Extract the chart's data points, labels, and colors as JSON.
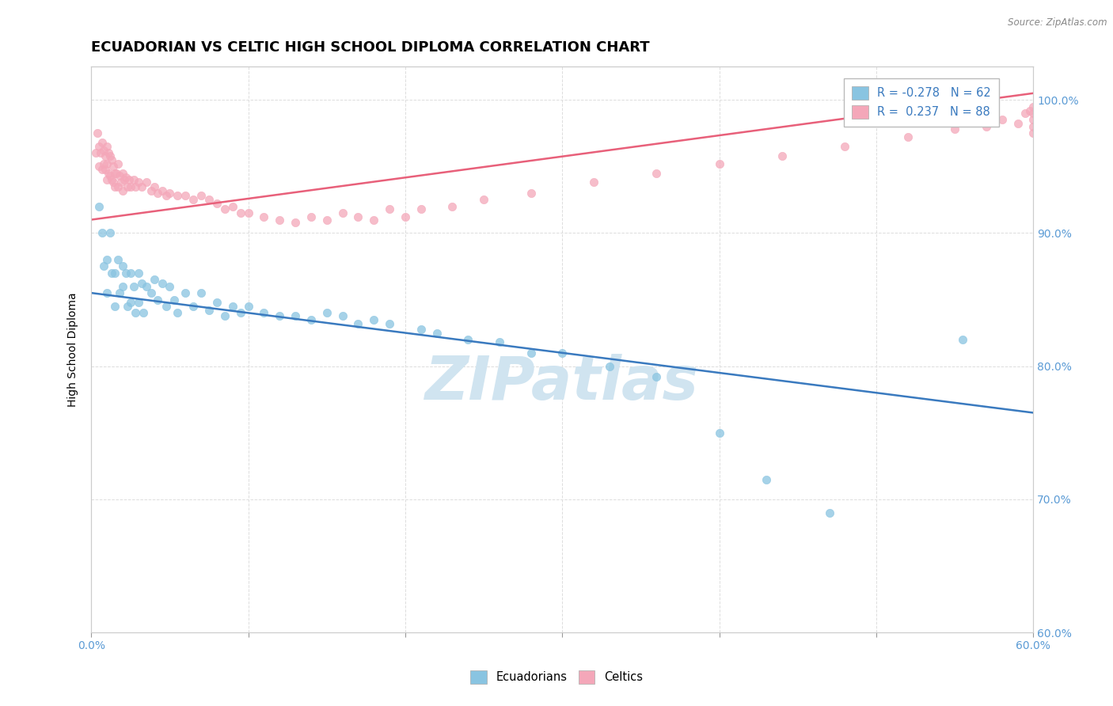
{
  "title": "ECUADORIAN VS CELTIC HIGH SCHOOL DIPLOMA CORRELATION CHART",
  "source": "Source: ZipAtlas.com",
  "ylabel": "High School Diploma",
  "xlim": [
    0.0,
    0.6
  ],
  "ylim": [
    0.615,
    1.025
  ],
  "yticks": [
    0.6,
    0.7,
    0.8,
    0.9,
    1.0
  ],
  "ytick_labels": [
    "60.0%",
    "70.0%",
    "80.0%",
    "90.0%",
    "100.0%"
  ],
  "xticks": [
    0.0,
    0.1,
    0.2,
    0.3,
    0.4,
    0.5,
    0.6
  ],
  "xtick_labels": [
    "0.0%",
    "",
    "",
    "",
    "",
    "",
    "60.0%"
  ],
  "legend_blue_label": "R = -0.278   N = 62",
  "legend_pink_label": "R =  0.237   N = 88",
  "legend_ecuadorians": "Ecuadorians",
  "legend_celtics": "Celtics",
  "blue_color": "#89c4e1",
  "pink_color": "#f4a7b9",
  "blue_line_color": "#3a7abf",
  "pink_line_color": "#e8607a",
  "watermark": "ZIPatlas",
  "watermark_color": "#d0e4f0",
  "grid_color": "#dddddd",
  "title_fontsize": 13,
  "label_fontsize": 10,
  "tick_fontsize": 10,
  "blue_scatter_x": [
    0.005,
    0.007,
    0.008,
    0.01,
    0.01,
    0.012,
    0.013,
    0.015,
    0.015,
    0.017,
    0.018,
    0.02,
    0.02,
    0.022,
    0.023,
    0.025,
    0.025,
    0.027,
    0.028,
    0.03,
    0.03,
    0.032,
    0.033,
    0.035,
    0.038,
    0.04,
    0.042,
    0.045,
    0.048,
    0.05,
    0.053,
    0.055,
    0.06,
    0.065,
    0.07,
    0.075,
    0.08,
    0.085,
    0.09,
    0.095,
    0.1,
    0.11,
    0.12,
    0.13,
    0.14,
    0.15,
    0.16,
    0.17,
    0.18,
    0.19,
    0.21,
    0.22,
    0.24,
    0.26,
    0.28,
    0.3,
    0.33,
    0.36,
    0.4,
    0.43,
    0.47,
    0.555
  ],
  "blue_scatter_y": [
    0.92,
    0.9,
    0.875,
    0.88,
    0.855,
    0.9,
    0.87,
    0.87,
    0.845,
    0.88,
    0.855,
    0.875,
    0.86,
    0.87,
    0.845,
    0.87,
    0.848,
    0.86,
    0.84,
    0.87,
    0.848,
    0.862,
    0.84,
    0.86,
    0.855,
    0.865,
    0.85,
    0.862,
    0.845,
    0.86,
    0.85,
    0.84,
    0.855,
    0.845,
    0.855,
    0.842,
    0.848,
    0.838,
    0.845,
    0.84,
    0.845,
    0.84,
    0.838,
    0.838,
    0.835,
    0.84,
    0.838,
    0.832,
    0.835,
    0.832,
    0.828,
    0.825,
    0.82,
    0.818,
    0.81,
    0.81,
    0.8,
    0.792,
    0.75,
    0.715,
    0.69,
    0.82
  ],
  "pink_scatter_x": [
    0.003,
    0.004,
    0.005,
    0.005,
    0.006,
    0.007,
    0.007,
    0.008,
    0.008,
    0.009,
    0.009,
    0.01,
    0.01,
    0.01,
    0.011,
    0.011,
    0.012,
    0.012,
    0.013,
    0.013,
    0.014,
    0.014,
    0.015,
    0.015,
    0.016,
    0.017,
    0.017,
    0.018,
    0.019,
    0.02,
    0.02,
    0.021,
    0.022,
    0.023,
    0.024,
    0.025,
    0.027,
    0.028,
    0.03,
    0.032,
    0.035,
    0.038,
    0.04,
    0.042,
    0.045,
    0.048,
    0.05,
    0.055,
    0.06,
    0.065,
    0.07,
    0.075,
    0.08,
    0.085,
    0.09,
    0.095,
    0.1,
    0.11,
    0.12,
    0.13,
    0.14,
    0.15,
    0.16,
    0.17,
    0.18,
    0.19,
    0.2,
    0.21,
    0.23,
    0.25,
    0.28,
    0.32,
    0.36,
    0.4,
    0.44,
    0.48,
    0.52,
    0.55,
    0.57,
    0.58,
    0.59,
    0.595,
    0.598,
    0.6,
    0.6,
    0.6,
    0.6,
    0.6
  ],
  "pink_scatter_y": [
    0.96,
    0.975,
    0.95,
    0.965,
    0.96,
    0.948,
    0.968,
    0.952,
    0.962,
    0.948,
    0.958,
    0.965,
    0.952,
    0.94,
    0.96,
    0.945,
    0.958,
    0.943,
    0.955,
    0.94,
    0.95,
    0.938,
    0.945,
    0.935,
    0.945,
    0.952,
    0.935,
    0.943,
    0.938,
    0.945,
    0.932,
    0.94,
    0.942,
    0.935,
    0.94,
    0.935,
    0.94,
    0.935,
    0.938,
    0.935,
    0.938,
    0.932,
    0.935,
    0.93,
    0.932,
    0.928,
    0.93,
    0.928,
    0.928,
    0.925,
    0.928,
    0.925,
    0.922,
    0.918,
    0.92,
    0.915,
    0.915,
    0.912,
    0.91,
    0.908,
    0.912,
    0.91,
    0.915,
    0.912,
    0.91,
    0.918,
    0.912,
    0.918,
    0.92,
    0.925,
    0.93,
    0.938,
    0.945,
    0.952,
    0.958,
    0.965,
    0.972,
    0.978,
    0.98,
    0.985,
    0.982,
    0.99,
    0.992,
    0.995,
    0.99,
    0.985,
    0.98,
    0.975
  ]
}
